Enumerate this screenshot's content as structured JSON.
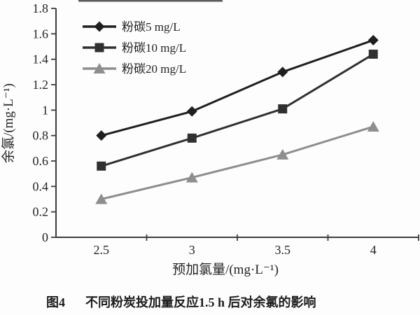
{
  "figure_caption": {
    "prefix": "图4",
    "text": "不同粉炭投加量反应1.5 h 后对余氯的影响"
  },
  "colors": {
    "axis": "#3c3c3c",
    "text": "#232323",
    "background": "#fdfdfd",
    "scan_artifact": "#3f3f3f"
  },
  "chart_data": {
    "type": "line",
    "title": "",
    "xlabel": "预加氯量/(mg·L⁻¹)",
    "ylabel": "余氯/(mg·L⁻¹)",
    "categories": [
      "2.5",
      "3",
      "3.5",
      "4"
    ],
    "series": [
      {
        "name": "粉碳5 mg/L",
        "marker": "diamond",
        "color": "#1f1f1f",
        "values": [
          0.8,
          0.99,
          1.3,
          1.55
        ]
      },
      {
        "name": "粉碳10 mg/L",
        "marker": "square",
        "color": "#303030",
        "values": [
          0.56,
          0.78,
          1.01,
          1.44
        ]
      },
      {
        "name": "粉碳20 mg/L",
        "marker": "triangle",
        "color": "#8e8e8e",
        "values": [
          0.3,
          0.47,
          0.65,
          0.87
        ]
      }
    ],
    "ylim": [
      0,
      1.8
    ],
    "ytick_step": 0.2,
    "ytick_labels": [
      "0",
      "0.2",
      "0.4",
      "0.6",
      "0.8",
      "1",
      "1.2",
      "1.4",
      "1.6",
      "1.8"
    ],
    "grid": false,
    "legend_position": "top-left",
    "tick_style": "x-ticks-at-category-boundaries, labels-at-category-centers"
  }
}
